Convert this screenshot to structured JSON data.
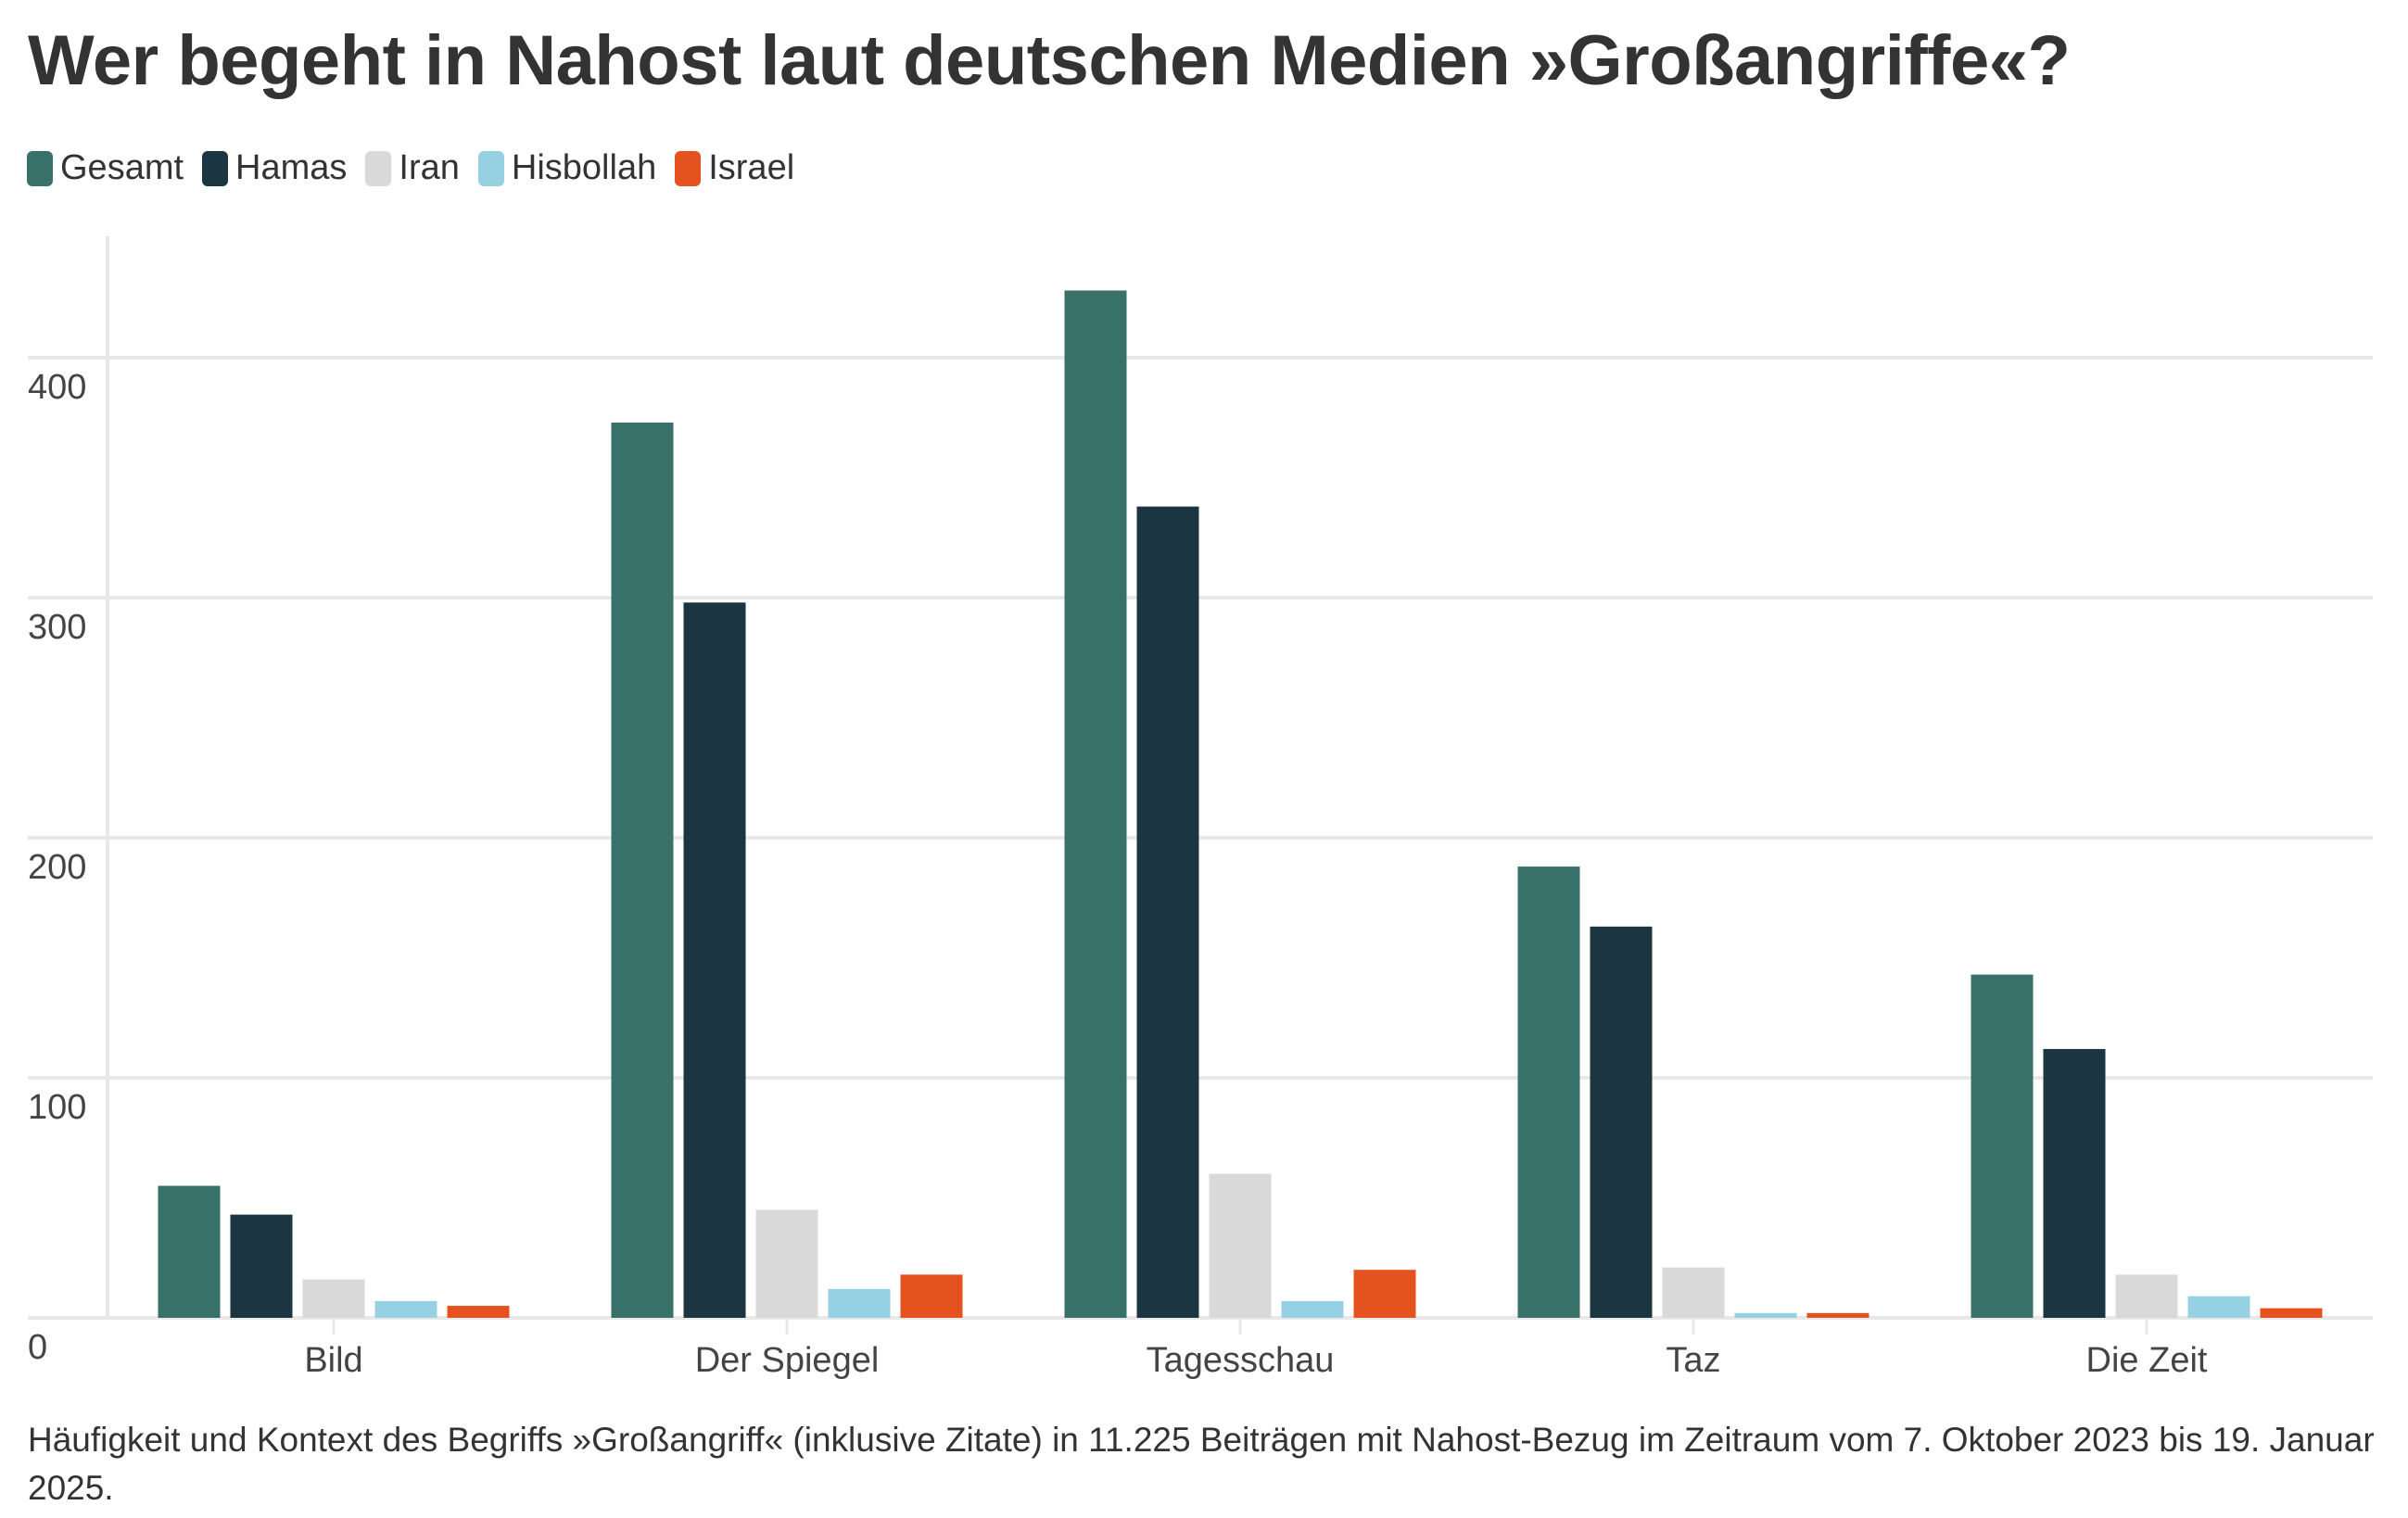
{
  "colors": {
    "text": "#333333",
    "grid": "#e8e8e8",
    "Gesamt": "#38706a",
    "Hamas": "#1b3541",
    "Iran": "#d9d9d9",
    "Hisbollah": "#95d1e2",
    "Israel": "#e4521f"
  },
  "chart_data": {
    "type": "bar",
    "title": "Wer begeht in Nahost laut deutschen Medien »Großangriffe«?",
    "caption": "Häufigkeit und Kontext des Begriffs »Großangriff« (inklusive Zitate) in 11.225 Beiträgen mit Nahost-Bezug im Zeitraum vom 7. Oktober 2023 bis 19. Januar 2025.",
    "legend_position": "top-left",
    "legend": [
      "Gesamt",
      "Hamas",
      "Iran",
      "Hisbollah",
      "Israel"
    ],
    "categories": [
      "Bild",
      "Der Spiegel",
      "Tagesschau",
      "Taz",
      "Die Zeit"
    ],
    "series": [
      {
        "name": "Gesamt",
        "values": [
          55,
          373,
          428,
          188,
          143
        ]
      },
      {
        "name": "Hamas",
        "values": [
          43,
          298,
          338,
          163,
          112
        ]
      },
      {
        "name": "Iran",
        "values": [
          16,
          45,
          60,
          21,
          18
        ]
      },
      {
        "name": "Hisbollah",
        "values": [
          7,
          12,
          7,
          2,
          9
        ]
      },
      {
        "name": "Israel",
        "values": [
          5,
          18,
          20,
          2,
          4
        ]
      }
    ],
    "yticks": [
      "0",
      "100",
      "200",
      "300",
      "400"
    ],
    "ytick_values": [
      0,
      100,
      200,
      300,
      400
    ],
    "ylim": [
      0,
      450
    ],
    "xlabel": "",
    "ylabel": "",
    "grid": true
  }
}
